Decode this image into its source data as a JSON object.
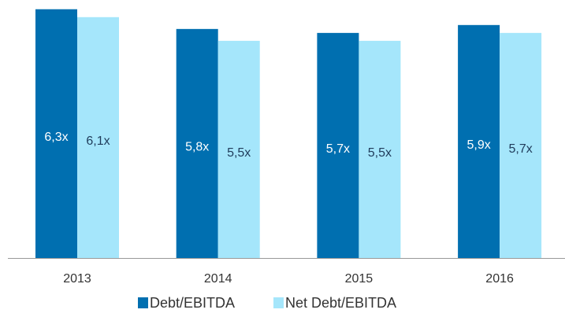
{
  "chart_data": {
    "type": "bar",
    "categories": [
      "2013",
      "2014",
      "2015",
      "2016"
    ],
    "series": [
      {
        "name": "Debt/EBITDA",
        "color": "#006fb0",
        "values": [
          6.3,
          5.8,
          5.7,
          5.9
        ],
        "value_labels": [
          "6,3x",
          "5,8x",
          "5,7x",
          "5,9x"
        ]
      },
      {
        "name": "Net Debt/EBITDA",
        "color": "#a5e6fb",
        "values": [
          6.1,
          5.5,
          5.5,
          5.7
        ],
        "value_labels": [
          "6,1x",
          "5,5x",
          "5,5x",
          "5,7x"
        ]
      }
    ],
    "legend": "bottom"
  }
}
